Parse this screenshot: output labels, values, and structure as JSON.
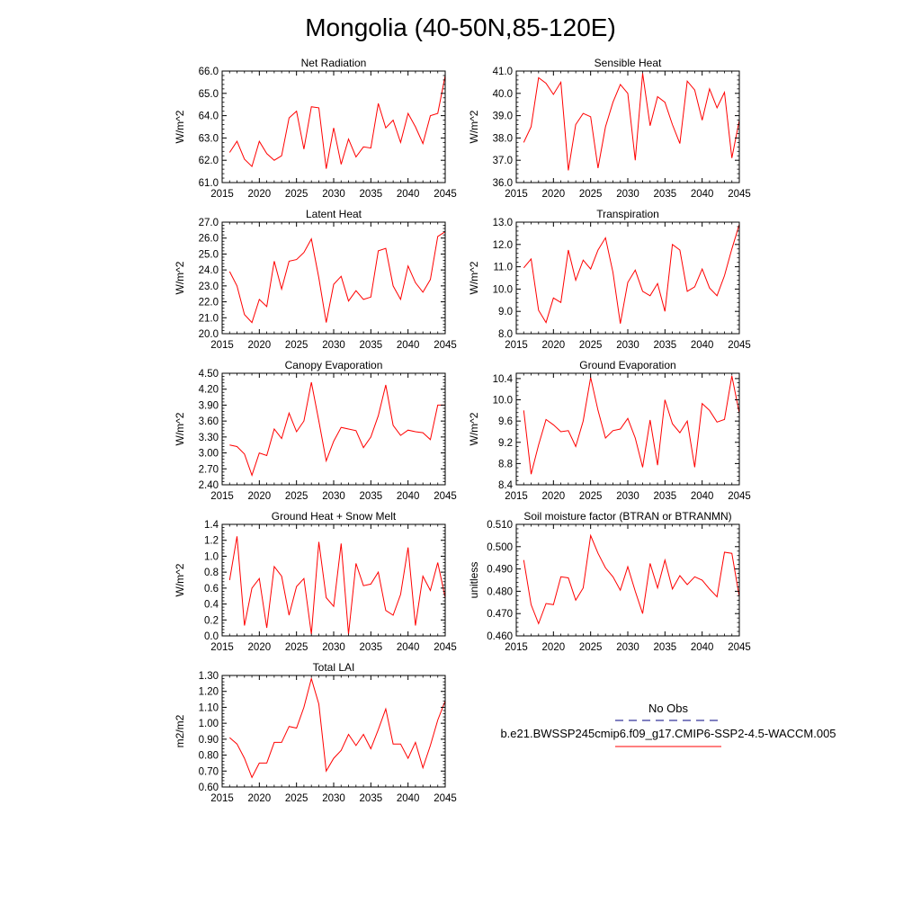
{
  "figure_title": "Mongolia (40-50N,85-120E)",
  "colors": {
    "model_line": "#ff0000",
    "obs_line": "#000080",
    "axis": "#000000"
  },
  "legend": {
    "obs_label": "No Obs",
    "model_label": "b.e21.BWSSP245cmip6.f09_g17.CMIP6-SSP2-4.5-WACCM.005"
  },
  "chart_data": [
    {
      "type": "line",
      "title": "Net Radiation",
      "ylabel": "W/m^2",
      "xlim": [
        2015,
        2045
      ],
      "ylim": [
        61.0,
        66.0
      ],
      "xticks": [
        2015,
        2020,
        2025,
        2030,
        2035,
        2040,
        2045
      ],
      "xtick_labels": [
        "2015",
        "2020",
        "2025",
        "2030",
        "2035",
        "2040",
        "2045"
      ],
      "yticks": [
        61.0,
        62.0,
        63.0,
        64.0,
        65.0,
        66.0
      ],
      "ytick_labels": [
        "61.0",
        "62.0",
        "63.0",
        "64.0",
        "65.0",
        "66.0"
      ],
      "x": [
        2016,
        2017,
        2018,
        2019,
        2020,
        2021,
        2022,
        2023,
        2024,
        2025,
        2026,
        2027,
        2028,
        2029,
        2030,
        2031,
        2032,
        2033,
        2034,
        2035,
        2036,
        2037,
        2038,
        2039,
        2040,
        2041,
        2042,
        2043,
        2044,
        2045
      ],
      "values": [
        62.35,
        62.85,
        62.05,
        61.72,
        62.85,
        62.3,
        62.0,
        62.2,
        63.9,
        64.2,
        62.5,
        64.4,
        64.35,
        61.62,
        63.45,
        61.82,
        62.95,
        62.15,
        62.6,
        62.55,
        64.55,
        63.45,
        63.8,
        62.8,
        64.1,
        63.5,
        62.75,
        64.0,
        64.1,
        65.8
      ]
    },
    {
      "type": "line",
      "title": "Sensible Heat",
      "ylabel": "W/m^2",
      "xlim": [
        2015,
        2045
      ],
      "ylim": [
        36.0,
        41.0
      ],
      "xticks": [
        2015,
        2020,
        2025,
        2030,
        2035,
        2040,
        2045
      ],
      "xtick_labels": [
        "2015",
        "2020",
        "2025",
        "2030",
        "2035",
        "2040",
        "2045"
      ],
      "yticks": [
        36.0,
        37.0,
        38.0,
        39.0,
        40.0,
        41.0
      ],
      "ytick_labels": [
        "36.0",
        "37.0",
        "38.0",
        "39.0",
        "40.0",
        "41.0"
      ],
      "x": [
        2016,
        2017,
        2018,
        2019,
        2020,
        2021,
        2022,
        2023,
        2024,
        2025,
        2026,
        2027,
        2028,
        2029,
        2030,
        2031,
        2032,
        2033,
        2034,
        2035,
        2036,
        2037,
        2038,
        2039,
        2040,
        2041,
        2042,
        2043,
        2044,
        2045
      ],
      "values": [
        37.8,
        38.5,
        40.7,
        40.45,
        39.95,
        40.5,
        36.55,
        38.6,
        39.1,
        38.95,
        36.65,
        38.5,
        39.6,
        40.4,
        40.0,
        37.0,
        40.9,
        38.55,
        39.85,
        39.6,
        38.6,
        37.75,
        40.55,
        40.15,
        38.8,
        40.2,
        39.35,
        40.05,
        37.1,
        38.8
      ]
    },
    {
      "type": "line",
      "title": "Latent Heat",
      "ylabel": "W/m^2",
      "xlim": [
        2015,
        2045
      ],
      "ylim": [
        20.0,
        27.0
      ],
      "xticks": [
        2015,
        2020,
        2025,
        2030,
        2035,
        2040,
        2045
      ],
      "xtick_labels": [
        "2015",
        "2020",
        "2025",
        "2030",
        "2035",
        "2040",
        "2045"
      ],
      "yticks": [
        20.0,
        21.0,
        22.0,
        23.0,
        24.0,
        25.0,
        26.0,
        27.0
      ],
      "ytick_labels": [
        "20.0",
        "21.0",
        "22.0",
        "23.0",
        "24.0",
        "25.0",
        "26.0",
        "27.0"
      ],
      "x": [
        2016,
        2017,
        2018,
        2019,
        2020,
        2021,
        2022,
        2023,
        2024,
        2025,
        2026,
        2027,
        2028,
        2029,
        2030,
        2031,
        2032,
        2033,
        2034,
        2035,
        2036,
        2037,
        2038,
        2039,
        2040,
        2041,
        2042,
        2043,
        2044,
        2045
      ],
      "values": [
        23.9,
        23.0,
        21.2,
        20.7,
        22.15,
        21.7,
        24.55,
        22.8,
        24.55,
        24.65,
        25.1,
        25.95,
        23.5,
        20.7,
        23.1,
        23.6,
        22.05,
        22.7,
        22.15,
        22.3,
        25.2,
        25.35,
        23.0,
        22.15,
        24.25,
        23.2,
        22.6,
        23.4,
        26.1,
        26.4
      ]
    },
    {
      "type": "line",
      "title": "Transpiration",
      "ylabel": "W/m^2",
      "xlim": [
        2015,
        2045
      ],
      "ylim": [
        8.0,
        13.0
      ],
      "xticks": [
        2015,
        2020,
        2025,
        2030,
        2035,
        2040,
        2045
      ],
      "xtick_labels": [
        "2015",
        "2020",
        "2025",
        "2030",
        "2035",
        "2040",
        "2045"
      ],
      "yticks": [
        8.0,
        9.0,
        10.0,
        11.0,
        12.0,
        13.0
      ],
      "ytick_labels": [
        "8.0",
        "9.0",
        "10.0",
        "11.0",
        "12.0",
        "13.0"
      ],
      "x": [
        2016,
        2017,
        2018,
        2019,
        2020,
        2021,
        2022,
        2023,
        2024,
        2025,
        2026,
        2027,
        2028,
        2029,
        2030,
        2031,
        2032,
        2033,
        2034,
        2035,
        2036,
        2037,
        2038,
        2039,
        2040,
        2041,
        2042,
        2043,
        2044,
        2045
      ],
      "values": [
        10.95,
        11.35,
        9.05,
        8.5,
        9.6,
        9.4,
        11.75,
        10.4,
        11.3,
        10.9,
        11.75,
        12.3,
        10.75,
        8.45,
        10.3,
        10.85,
        9.9,
        9.7,
        10.25,
        9.0,
        12.0,
        11.75,
        9.9,
        10.1,
        10.9,
        10.05,
        9.7,
        10.6,
        11.8,
        12.9
      ]
    },
    {
      "type": "line",
      "title": "Canopy Evaporation",
      "ylabel": "W/m^2",
      "xlim": [
        2015,
        2045
      ],
      "ylim": [
        2.4,
        4.5
      ],
      "xticks": [
        2015,
        2020,
        2025,
        2030,
        2035,
        2040,
        2045
      ],
      "xtick_labels": [
        "2015",
        "2020",
        "2025",
        "2030",
        "2035",
        "2040",
        "2045"
      ],
      "yticks": [
        2.4,
        2.7,
        3.0,
        3.3,
        3.6,
        3.9,
        4.2,
        4.5
      ],
      "ytick_labels": [
        "2.40",
        "2.70",
        "3.00",
        "3.30",
        "3.60",
        "3.90",
        "4.20",
        "4.50"
      ],
      "x": [
        2016,
        2017,
        2018,
        2019,
        2020,
        2021,
        2022,
        2023,
        2024,
        2025,
        2026,
        2027,
        2028,
        2029,
        2030,
        2031,
        2032,
        2033,
        2034,
        2035,
        2036,
        2037,
        2038,
        2039,
        2040,
        2041,
        2042,
        2043,
        2044,
        2045
      ],
      "values": [
        3.15,
        3.12,
        2.98,
        2.58,
        3.0,
        2.95,
        3.45,
        3.27,
        3.75,
        3.4,
        3.6,
        4.33,
        3.6,
        2.85,
        3.22,
        3.48,
        3.45,
        3.42,
        3.1,
        3.3,
        3.7,
        4.28,
        3.52,
        3.33,
        3.43,
        3.4,
        3.38,
        3.25,
        3.9,
        3.9
      ]
    },
    {
      "type": "line",
      "title": "Ground Evaporation",
      "ylabel": "W/m^2",
      "xlim": [
        2015,
        2045
      ],
      "ylim": [
        8.4,
        10.5
      ],
      "xticks": [
        2015,
        2020,
        2025,
        2030,
        2035,
        2040,
        2045
      ],
      "xtick_labels": [
        "2015",
        "2020",
        "2025",
        "2030",
        "2035",
        "2040",
        "2045"
      ],
      "yticks": [
        8.4,
        8.8,
        9.2,
        9.6,
        10.0,
        10.4
      ],
      "ytick_labels": [
        "8.4",
        "8.8",
        "9.2",
        "9.6",
        "10.0",
        "10.4"
      ],
      "x": [
        2016,
        2017,
        2018,
        2019,
        2020,
        2021,
        2022,
        2023,
        2024,
        2025,
        2026,
        2027,
        2028,
        2029,
        2030,
        2031,
        2032,
        2033,
        2034,
        2035,
        2036,
        2037,
        2038,
        2039,
        2040,
        2041,
        2042,
        2043,
        2044,
        2045
      ],
      "values": [
        9.8,
        8.6,
        9.15,
        9.63,
        9.53,
        9.4,
        9.42,
        9.12,
        9.6,
        10.42,
        9.8,
        9.28,
        9.42,
        9.45,
        9.65,
        9.28,
        8.73,
        9.62,
        8.77,
        10.0,
        9.55,
        9.38,
        9.6,
        8.73,
        9.93,
        9.8,
        9.58,
        9.63,
        10.45,
        9.75
      ]
    },
    {
      "type": "line",
      "title": "Ground Heat + Snow Melt",
      "ylabel": "W/m^2",
      "xlim": [
        2015,
        2045
      ],
      "ylim": [
        0.0,
        1.4
      ],
      "xticks": [
        2015,
        2020,
        2025,
        2030,
        2035,
        2040,
        2045
      ],
      "xtick_labels": [
        "2015",
        "2020",
        "2025",
        "2030",
        "2035",
        "2040",
        "2045"
      ],
      "yticks": [
        0.0,
        0.2,
        0.4,
        0.6,
        0.8,
        1.0,
        1.2,
        1.4
      ],
      "ytick_labels": [
        "0.0",
        "0.2",
        "0.4",
        "0.6",
        "0.8",
        "1.0",
        "1.2",
        "1.4"
      ],
      "x": [
        2016,
        2017,
        2018,
        2019,
        2020,
        2021,
        2022,
        2023,
        2024,
        2025,
        2026,
        2027,
        2028,
        2029,
        2030,
        2031,
        2032,
        2033,
        2034,
        2035,
        2036,
        2037,
        2038,
        2039,
        2040,
        2041,
        2042,
        2043,
        2044,
        2045
      ],
      "values": [
        0.7,
        1.25,
        0.13,
        0.6,
        0.72,
        0.1,
        0.87,
        0.75,
        0.26,
        0.62,
        0.72,
        0.02,
        1.18,
        0.48,
        0.37,
        1.16,
        0.02,
        0.91,
        0.63,
        0.65,
        0.8,
        0.32,
        0.26,
        0.52,
        1.11,
        0.13,
        0.75,
        0.57,
        0.92,
        0.48
      ]
    },
    {
      "type": "line",
      "title": "Soil moisture factor (BTRAN or BTRANMN)",
      "ylabel": "unitless",
      "xlim": [
        2015,
        2045
      ],
      "ylim": [
        0.46,
        0.51
      ],
      "xticks": [
        2015,
        2020,
        2025,
        2030,
        2035,
        2040,
        2045
      ],
      "xtick_labels": [
        "2015",
        "2020",
        "2025",
        "2030",
        "2035",
        "2040",
        "2045"
      ],
      "yticks": [
        0.46,
        0.47,
        0.48,
        0.49,
        0.5,
        0.51
      ],
      "ytick_labels": [
        "0.460",
        "0.470",
        "0.480",
        "0.490",
        "0.500",
        "0.510"
      ],
      "x": [
        2016,
        2017,
        2018,
        2019,
        2020,
        2021,
        2022,
        2023,
        2024,
        2025,
        2026,
        2027,
        2028,
        2029,
        2030,
        2031,
        2032,
        2033,
        2034,
        2035,
        2036,
        2037,
        2038,
        2039,
        2040,
        2041,
        2042,
        2043,
        2044,
        2045
      ],
      "values": [
        0.494,
        0.474,
        0.4655,
        0.4745,
        0.474,
        0.4865,
        0.486,
        0.476,
        0.4815,
        0.505,
        0.497,
        0.4905,
        0.4865,
        0.4805,
        0.491,
        0.48,
        0.47,
        0.4925,
        0.4815,
        0.494,
        0.481,
        0.487,
        0.483,
        0.4865,
        0.485,
        0.481,
        0.4775,
        0.4975,
        0.497,
        0.4775
      ]
    },
    {
      "type": "line",
      "title": "Total LAI",
      "ylabel": "m2/m2",
      "xlim": [
        2015,
        2045
      ],
      "ylim": [
        0.6,
        1.3
      ],
      "xticks": [
        2015,
        2020,
        2025,
        2030,
        2035,
        2040,
        2045
      ],
      "xtick_labels": [
        "2015",
        "2020",
        "2025",
        "2030",
        "2035",
        "2040",
        "2045"
      ],
      "yticks": [
        0.6,
        0.7,
        0.8,
        0.9,
        1.0,
        1.1,
        1.2,
        1.3
      ],
      "ytick_labels": [
        "0.60",
        "0.70",
        "0.80",
        "0.90",
        "1.00",
        "1.10",
        "1.20",
        "1.30"
      ],
      "x": [
        2016,
        2017,
        2018,
        2019,
        2020,
        2021,
        2022,
        2023,
        2024,
        2025,
        2026,
        2027,
        2028,
        2029,
        2030,
        2031,
        2032,
        2033,
        2034,
        2035,
        2036,
        2037,
        2038,
        2039,
        2040,
        2041,
        2042,
        2043,
        2044,
        2045
      ],
      "values": [
        0.91,
        0.87,
        0.78,
        0.66,
        0.75,
        0.75,
        0.88,
        0.88,
        0.98,
        0.97,
        1.1,
        1.28,
        1.12,
        0.7,
        0.78,
        0.83,
        0.93,
        0.86,
        0.93,
        0.84,
        0.96,
        1.09,
        0.87,
        0.87,
        0.78,
        0.88,
        0.72,
        0.86,
        1.02,
        1.14
      ]
    }
  ]
}
